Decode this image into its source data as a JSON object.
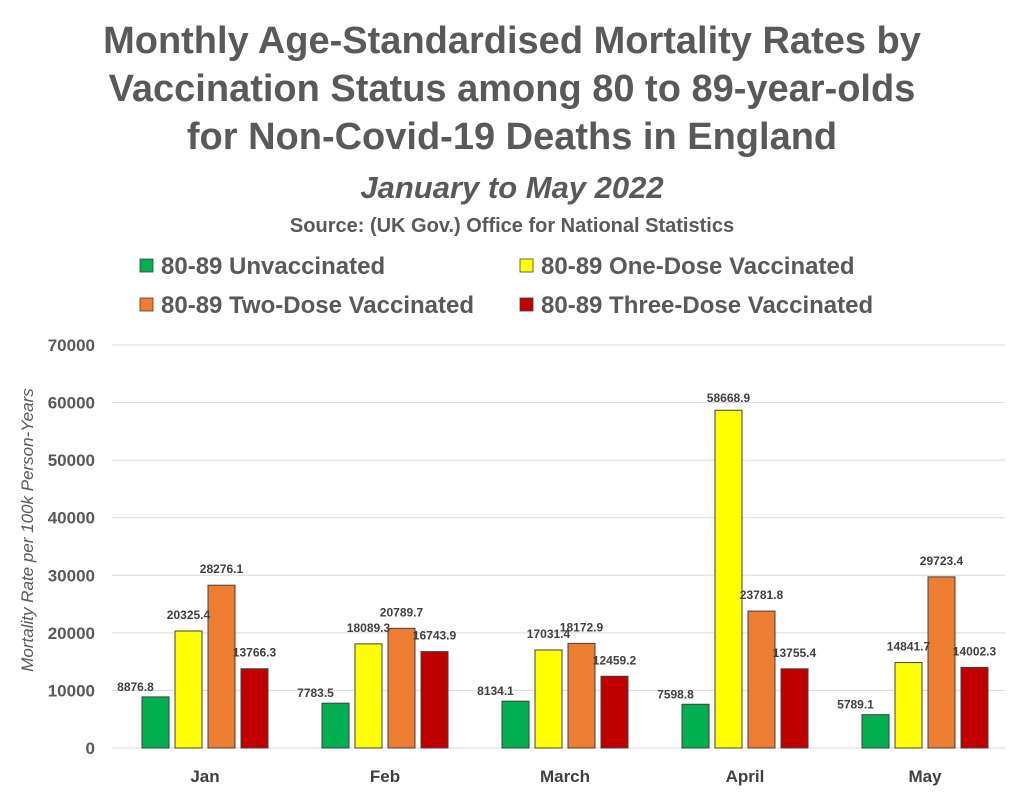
{
  "chart_data": {
    "type": "bar",
    "title": [
      "Monthly Age-Standardised Mortality Rates by",
      "Vaccination Status among 80 to 89-year-olds",
      "for Non-Covid-19 Deaths in England"
    ],
    "subtitle": "January to May 2022",
    "source": "Source: (UK Gov.) Office for National Statistics",
    "xlabel": "",
    "ylabel": "Mortality Rate per 100k Person-Years",
    "ylim": [
      0,
      70000
    ],
    "yticks": [
      "0",
      "10000",
      "20000",
      "30000",
      "40000",
      "50000",
      "60000",
      "70000"
    ],
    "grid": true,
    "legend_position": "top",
    "categories": [
      "Jan",
      "Feb",
      "March",
      "April",
      "May"
    ],
    "series": [
      {
        "name": "80-89 Unvaccinated",
        "color": "#00B050",
        "values": [
          8876.8,
          7783.5,
          8134.1,
          7598.8,
          5789.1
        ]
      },
      {
        "name": "80-89 One-Dose Vaccinated",
        "color": "#FFFF00",
        "values": [
          20325.4,
          18089.3,
          17031.4,
          58668.9,
          14841.7
        ]
      },
      {
        "name": "80-89 Two-Dose Vaccinated",
        "color": "#ED7D31",
        "values": [
          28276.1,
          20789.7,
          18172.9,
          23781.8,
          29723.4
        ]
      },
      {
        "name": "80-89 Three-Dose Vaccinated",
        "color": "#C00000",
        "values": [
          13766.3,
          16743.9,
          12459.2,
          13755.4,
          14002.3
        ]
      }
    ]
  }
}
